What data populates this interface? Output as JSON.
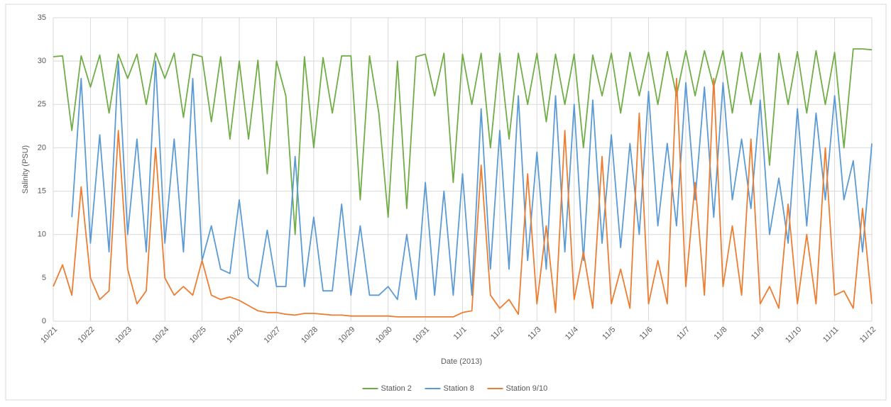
{
  "chart_data": {
    "type": "line",
    "xlabel": "Date (2013)",
    "ylabel": "Salinity (PSU)",
    "x": [
      0,
      0.25,
      0.5,
      0.75,
      1,
      1.25,
      1.5,
      1.75,
      2,
      2.25,
      2.5,
      2.75,
      3,
      3.25,
      3.5,
      3.75,
      4,
      4.25,
      4.5,
      4.75,
      5,
      5.25,
      5.5,
      5.75,
      6,
      6.25,
      6.5,
      6.75,
      7,
      7.25,
      7.5,
      7.75,
      8,
      8.25,
      8.5,
      8.75,
      9,
      9.25,
      9.5,
      9.75,
      10,
      10.25,
      10.5,
      10.75,
      11,
      11.25,
      11.5,
      11.75,
      12,
      12.25,
      12.5,
      12.75,
      13,
      13.25,
      13.5,
      13.75,
      14,
      14.25,
      14.5,
      14.75,
      15,
      15.25,
      15.5,
      15.75,
      16,
      16.25,
      16.5,
      16.75,
      17,
      17.25,
      17.5,
      17.75,
      18,
      18.25,
      18.5,
      18.75,
      19,
      19.25,
      19.5,
      19.75,
      20,
      20.25,
      20.5,
      20.75,
      21,
      21.25,
      21.5,
      21.75,
      22
    ],
    "xlim": [
      0,
      22
    ],
    "xticks": [
      {
        "value": 0,
        "label": "10/21"
      },
      {
        "value": 1,
        "label": "10/22"
      },
      {
        "value": 2,
        "label": "10/23"
      },
      {
        "value": 3,
        "label": "10/24"
      },
      {
        "value": 4,
        "label": "10/25"
      },
      {
        "value": 5,
        "label": "10/26"
      },
      {
        "value": 6,
        "label": "10/27"
      },
      {
        "value": 7,
        "label": "10/28"
      },
      {
        "value": 8,
        "label": "10/29"
      },
      {
        "value": 9,
        "label": "10/30"
      },
      {
        "value": 10,
        "label": "10/31"
      },
      {
        "value": 11,
        "label": "11/1"
      },
      {
        "value": 12,
        "label": "11/2"
      },
      {
        "value": 13,
        "label": "11/3"
      },
      {
        "value": 14,
        "label": "11/4"
      },
      {
        "value": 15,
        "label": "11/5"
      },
      {
        "value": 16,
        "label": "11/6"
      },
      {
        "value": 17,
        "label": "11/7"
      },
      {
        "value": 18,
        "label": "11/8"
      },
      {
        "value": 19,
        "label": "11/9"
      },
      {
        "value": 20,
        "label": "11/10"
      },
      {
        "value": 21,
        "label": "11/11"
      },
      {
        "value": 22,
        "label": "11/12"
      }
    ],
    "ylim": [
      0,
      35
    ],
    "yticks": [
      0,
      5,
      10,
      15,
      20,
      25,
      30,
      35
    ],
    "grid": true,
    "legend": "bottom",
    "series": [
      {
        "name": "Station 2",
        "color": "#70ad47",
        "values": [
          30.5,
          30.6,
          22,
          30.6,
          27,
          30.7,
          24,
          30.8,
          28,
          30.8,
          25,
          30.9,
          28,
          30.9,
          23.5,
          30.8,
          30.5,
          23,
          30.5,
          21,
          30,
          21,
          30.1,
          17,
          30,
          26,
          10,
          30.5,
          20,
          30.4,
          24,
          30.6,
          30.6,
          14,
          30.6,
          24,
          12,
          30,
          13,
          30.5,
          30.8,
          26,
          30.9,
          16,
          30.8,
          25,
          30.9,
          20,
          30.9,
          21,
          30.9,
          25,
          30.9,
          23,
          30.8,
          25,
          30.8,
          20,
          30.7,
          26,
          30.9,
          24,
          31,
          26,
          31,
          25,
          31.1,
          26,
          31.2,
          26,
          31.2,
          27,
          31.2,
          24,
          31,
          25,
          30.9,
          18,
          30.9,
          25,
          31.1,
          24,
          31.2,
          25,
          31,
          20,
          31.4,
          31.4,
          31.3
        ]
      },
      {
        "name": "Station 8",
        "color": "#5b9bd5",
        "values": [
          null,
          null,
          12,
          28,
          9,
          21.5,
          8,
          30,
          10,
          21,
          8,
          30,
          9,
          21,
          8,
          28,
          7,
          11,
          6,
          5.5,
          14,
          5,
          4,
          10.5,
          4,
          4,
          19,
          4,
          12,
          3.5,
          3.5,
          13.5,
          3,
          11,
          3,
          3,
          4,
          2.5,
          10,
          2.5,
          16,
          3,
          15,
          3,
          17,
          3,
          24.5,
          6,
          22,
          6,
          26,
          7,
          19.5,
          6,
          26,
          8,
          25,
          7,
          25.5,
          9,
          21.5,
          8.5,
          20.5,
          10,
          26.5,
          11,
          20.5,
          11,
          27.5,
          14,
          27,
          12,
          27.5,
          14,
          21,
          13,
          25.5,
          10,
          16.5,
          9,
          24.5,
          11,
          24,
          14,
          26,
          14,
          18.5,
          8,
          20.5
        ]
      },
      {
        "name": "Station 9/10",
        "color": "#ed7d31",
        "values": [
          4,
          6.5,
          3,
          15.5,
          5,
          2.5,
          3.5,
          22,
          6,
          2,
          3.5,
          20,
          5,
          3,
          4,
          3,
          7,
          3,
          2.5,
          2.8,
          2.4,
          1.8,
          1.2,
          1,
          1,
          0.8,
          0.7,
          0.9,
          0.9,
          0.8,
          0.7,
          0.7,
          0.6,
          0.6,
          0.6,
          0.6,
          0.6,
          0.5,
          0.5,
          0.5,
          0.5,
          0.5,
          0.5,
          0.5,
          1,
          1.2,
          18,
          3,
          1.5,
          2.5,
          0.8,
          17,
          2,
          11,
          1,
          22,
          2.5,
          8,
          1.5,
          19,
          2,
          6,
          1.5,
          24,
          2,
          7,
          2,
          28,
          4,
          16,
          3,
          28,
          4,
          11,
          3,
          21,
          2,
          4,
          1.5,
          13.5,
          2,
          10,
          2,
          20,
          3,
          3.5,
          1.5,
          13,
          2
        ]
      }
    ]
  }
}
